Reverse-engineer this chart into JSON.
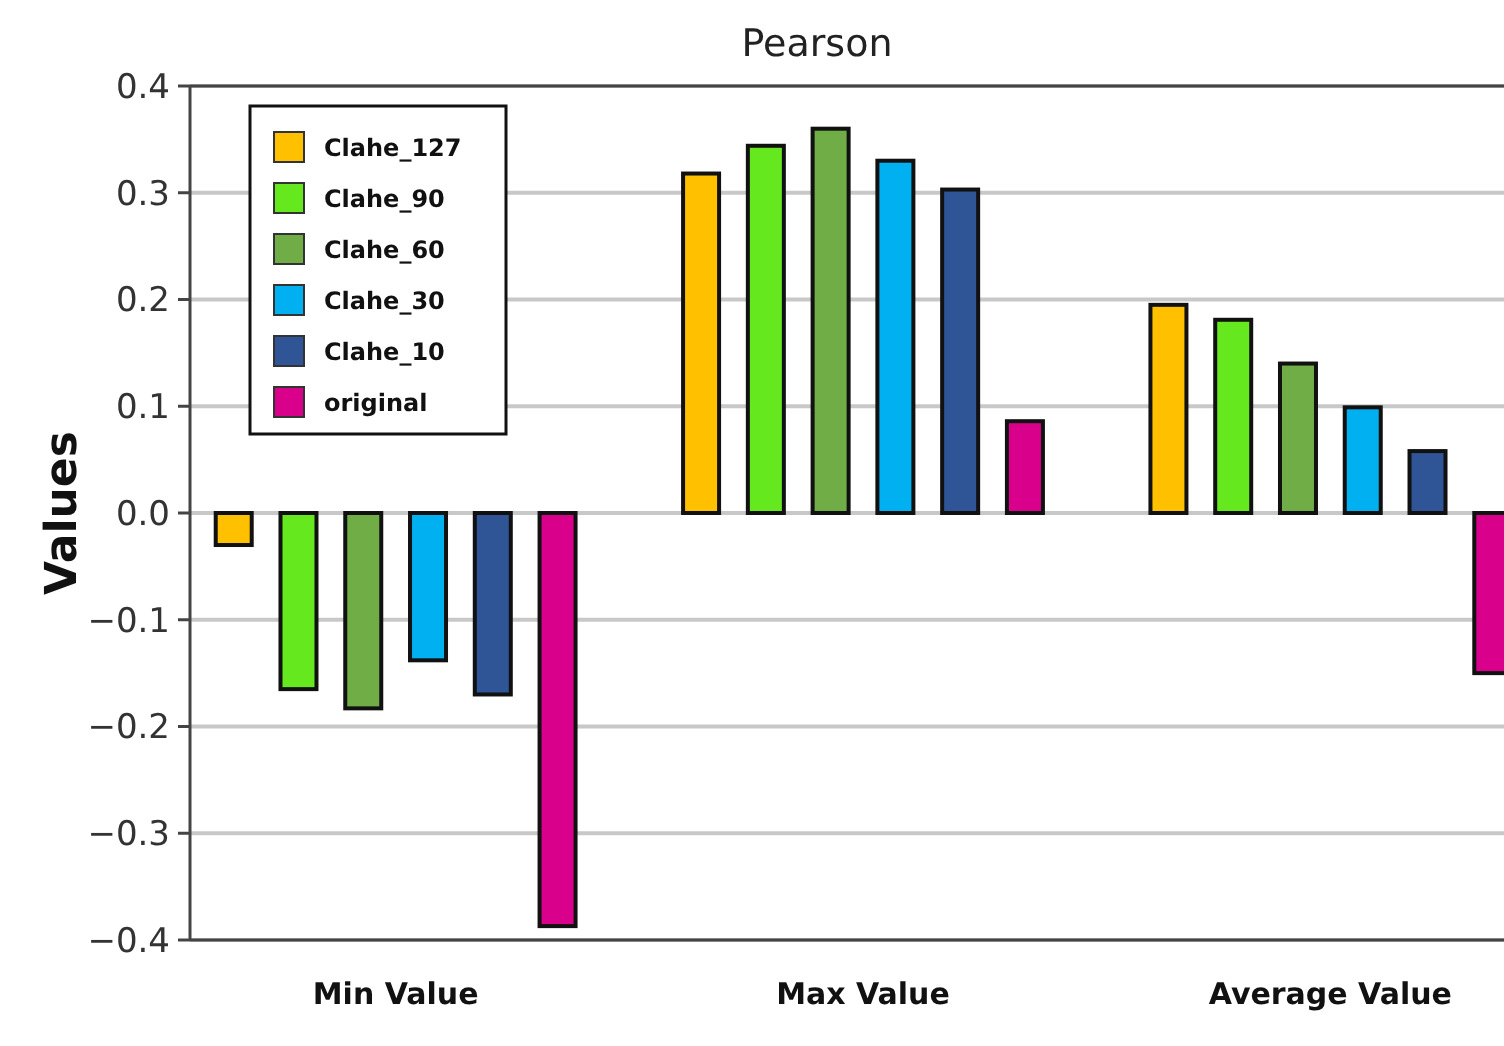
{
  "chart_data": {
    "type": "bar",
    "title": "Pearson",
    "ylabel": "Values",
    "categories": [
      "Min Value",
      "Max Value",
      "Average Value"
    ],
    "series": [
      {
        "name": "Clahe_127",
        "color": "#ffc000",
        "values": [
          -0.03,
          0.318,
          0.195
        ]
      },
      {
        "name": "Clahe_90",
        "color": "#66e81e",
        "values": [
          -0.165,
          0.344,
          0.181
        ]
      },
      {
        "name": "Clahe_60",
        "color": "#70ad47",
        "values": [
          -0.183,
          0.36,
          0.14
        ]
      },
      {
        "name": "Clahe_30",
        "color": "#00b0f0",
        "values": [
          -0.138,
          0.33,
          0.099
        ]
      },
      {
        "name": "Clahe_10",
        "color": "#2f5597",
        "values": [
          -0.17,
          0.303,
          0.058
        ]
      },
      {
        "name": "original",
        "color": "#d9008c",
        "values": [
          -0.387,
          0.086,
          -0.15
        ]
      }
    ],
    "ylim": [
      -0.4,
      0.4
    ],
    "yticks": [
      {
        "value": -0.4,
        "label": "−0.4"
      },
      {
        "value": -0.3,
        "label": "−0.3"
      },
      {
        "value": -0.2,
        "label": "−0.2"
      },
      {
        "value": -0.1,
        "label": "−0.1"
      },
      {
        "value": 0,
        "label": "0.0"
      },
      {
        "value": 0.1,
        "label": "0.1"
      },
      {
        "value": 0.2,
        "label": "0.2"
      },
      {
        "value": 0.3,
        "label": "0.3"
      },
      {
        "value": 0.4,
        "label": "0.4"
      }
    ],
    "grid": "y",
    "legend": "top left"
  }
}
